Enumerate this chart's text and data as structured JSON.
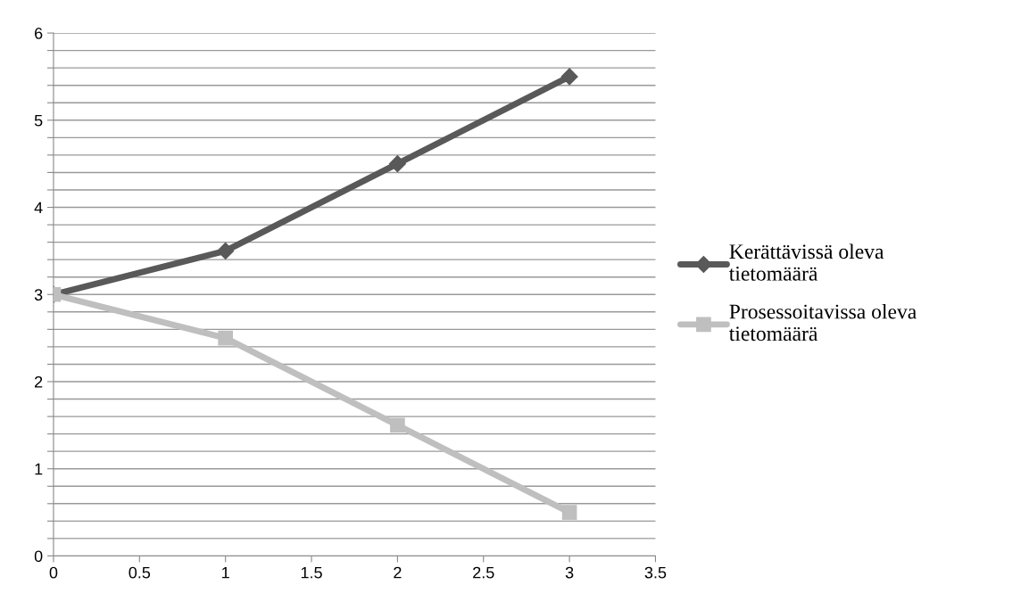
{
  "chart_data": {
    "type": "line",
    "x": [
      0,
      1,
      2,
      3
    ],
    "series": [
      {
        "name": "Kerättävissä oleva tietomäärä",
        "color": "#595959",
        "values": [
          3,
          3.5,
          4.5,
          5.5
        ],
        "marker": "diamond"
      },
      {
        "name": "Prosessoitavissa oleva tietomäärä",
        "color": "#bfbfbf",
        "values": [
          3,
          2.5,
          1.5,
          0.5
        ],
        "marker": "square"
      }
    ],
    "xlim": [
      0,
      3.5
    ],
    "xticks": [
      0,
      0.5,
      1,
      1.5,
      2,
      2.5,
      3,
      3.5
    ],
    "ylim": [
      0,
      6
    ],
    "yticks": [
      0,
      {
        "value": 0.2,
        "label": null
      },
      {
        "value": 0.4,
        "label": null
      },
      {
        "value": 0.6,
        "label": null
      },
      {
        "value": 0.8,
        "label": null
      },
      1,
      {
        "value": 1.2,
        "label": null
      },
      {
        "value": 1.4,
        "label": null
      },
      {
        "value": 1.6,
        "label": null
      },
      {
        "value": 1.8,
        "label": null
      },
      2,
      {
        "value": 2.2,
        "label": null
      },
      {
        "value": 2.4,
        "label": null
      },
      {
        "value": 2.6,
        "label": null
      },
      {
        "value": 2.8,
        "label": null
      },
      3,
      {
        "value": 3.2,
        "label": null
      },
      {
        "value": 3.4,
        "label": null
      },
      {
        "value": 3.6,
        "label": null
      },
      {
        "value": 3.8,
        "label": null
      },
      4,
      {
        "value": 4.2,
        "label": null
      },
      {
        "value": 4.4,
        "label": null
      },
      {
        "value": 4.6,
        "label": null
      },
      {
        "value": 4.8,
        "label": null
      },
      5,
      {
        "value": 5.2,
        "label": null
      },
      {
        "value": 5.4,
        "label": null
      },
      {
        "value": 5.6,
        "label": null
      },
      {
        "value": 5.8,
        "label": null
      },
      6
    ],
    "grid": "y",
    "legend": "right",
    "line_style": "solid"
  }
}
